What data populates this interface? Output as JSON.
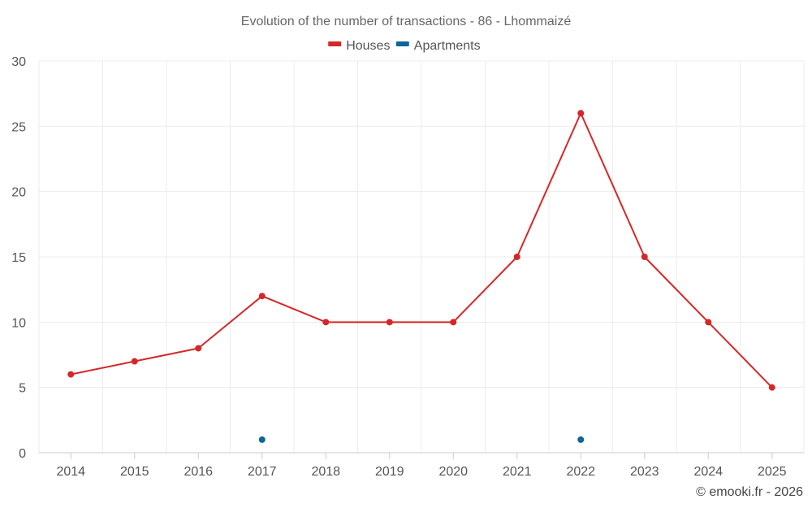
{
  "chart_data": {
    "type": "line",
    "title": "Evolution of the number of transactions - 86 - Lhommaizé",
    "categories": [
      "2014",
      "2015",
      "2016",
      "2017",
      "2018",
      "2019",
      "2020",
      "2021",
      "2022",
      "2023",
      "2024",
      "2025"
    ],
    "series": [
      {
        "name": "Houses",
        "color": "#d62728",
        "values": [
          6,
          7,
          8,
          12,
          10,
          10,
          10,
          15,
          26,
          15,
          10,
          5
        ]
      },
      {
        "name": "Apartments",
        "color": "#0b6797",
        "values": [
          null,
          null,
          null,
          1,
          null,
          null,
          null,
          null,
          1,
          null,
          null,
          null
        ]
      }
    ],
    "ylim": [
      0,
      30
    ],
    "yticks": [
      0,
      5,
      10,
      15,
      20,
      25,
      30
    ],
    "xlabel": "",
    "ylabel": "",
    "grid": true,
    "legend_position": "top-center",
    "credit": "© emooki.fr - 2026"
  }
}
